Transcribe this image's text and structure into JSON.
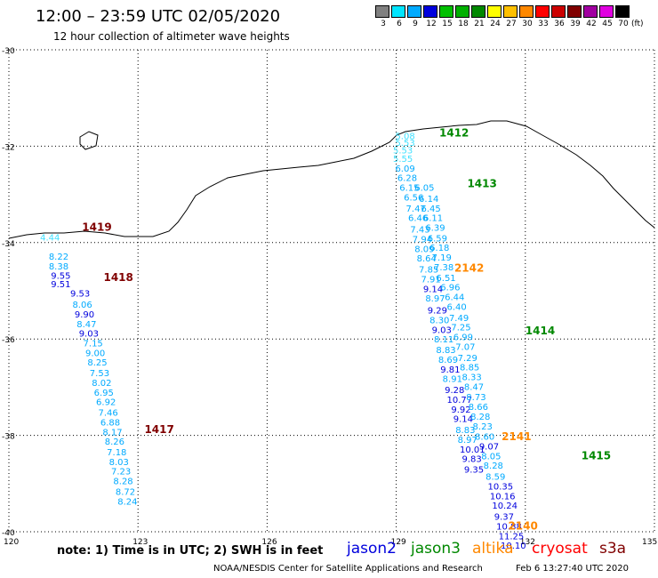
{
  "header": {
    "title": "12:00 – 23:59 UTC 02/05/2020",
    "subtitle": "12 hour collection of altimeter wave heights"
  },
  "color_scale": {
    "unit": "(ft)",
    "bins": [
      {
        "label": "3",
        "color": "#808080"
      },
      {
        "label": "6",
        "color": "#00e5ff"
      },
      {
        "label": "9",
        "color": "#00aaff"
      },
      {
        "label": "12",
        "color": "#0000dd"
      },
      {
        "label": "15",
        "color": "#00c000"
      },
      {
        "label": "18",
        "color": "#00b000"
      },
      {
        "label": "21",
        "color": "#008800"
      },
      {
        "label": "24",
        "color": "#ffff00"
      },
      {
        "label": "27",
        "color": "#ffc000"
      },
      {
        "label": "30",
        "color": "#ff8800"
      },
      {
        "label": "33",
        "color": "#ff0000"
      },
      {
        "label": "36",
        "color": "#cc0000"
      },
      {
        "label": "39",
        "color": "#800000"
      },
      {
        "label": "42",
        "color": "#a000a0"
      },
      {
        "label": "45",
        "color": "#e000e0"
      },
      {
        "label": "70",
        "color": "#000000"
      }
    ]
  },
  "map": {
    "lon_range": [
      120,
      135
    ],
    "lat_range": [
      -40,
      -30
    ],
    "lon_ticks": [
      "120",
      "123",
      "126",
      "129",
      "132",
      "135"
    ],
    "lat_ticks": [
      "-30",
      "-32",
      "-34",
      "-36",
      "-38",
      "-40"
    ]
  },
  "tracks": [
    {
      "pass": "1419",
      "color": "#800000",
      "points": [
        {
          "lon": 120.85,
          "lat": -33.88,
          "v": "4.44",
          "c": "#40e0ff"
        },
        {
          "lon": 121.05,
          "lat": -34.28,
          "v": "8.22",
          "c": "#00aaff"
        },
        {
          "lon": 121.05,
          "lat": -34.48,
          "v": "8.38",
          "c": "#00aaff"
        },
        {
          "lon": 121.1,
          "lat": -34.68,
          "v": "9.55",
          "c": "#0000dd"
        },
        {
          "lon": 121.1,
          "lat": -34.85,
          "v": "9.51",
          "c": "#0000dd"
        }
      ]
    },
    {
      "pass": "1418",
      "color": "#800000",
      "points": [
        {
          "lon": 121.55,
          "lat": -35.05,
          "v": "9.53",
          "c": "#0000dd"
        },
        {
          "lon": 121.6,
          "lat": -35.28,
          "v": "8.06",
          "c": "#00aaff"
        },
        {
          "lon": 121.65,
          "lat": -35.48,
          "v": "9.90",
          "c": "#0000dd"
        },
        {
          "lon": 121.7,
          "lat": -35.68,
          "v": "8.47",
          "c": "#00aaff"
        },
        {
          "lon": 121.75,
          "lat": -35.88,
          "v": "9.03",
          "c": "#0000dd"
        }
      ]
    },
    {
      "pass": "1417",
      "color": "#800000",
      "points": [
        {
          "lon": 121.85,
          "lat": -36.08,
          "v": "7.15",
          "c": "#00aaff"
        },
        {
          "lon": 121.9,
          "lat": -36.28,
          "v": "9.00",
          "c": "#00aaff"
        },
        {
          "lon": 121.95,
          "lat": -36.48,
          "v": "8.25",
          "c": "#00aaff"
        },
        {
          "lon": 122.0,
          "lat": -36.7,
          "v": "7.53",
          "c": "#00aaff"
        },
        {
          "lon": 122.05,
          "lat": -36.9,
          "v": "8.02",
          "c": "#00aaff"
        },
        {
          "lon": 122.1,
          "lat": -37.1,
          "v": "6.95",
          "c": "#00aaff"
        },
        {
          "lon": 122.15,
          "lat": -37.3,
          "v": "6.92",
          "c": "#00aaff"
        },
        {
          "lon": 122.2,
          "lat": -37.52,
          "v": "7.46",
          "c": "#00aaff"
        },
        {
          "lon": 122.25,
          "lat": -37.72,
          "v": "6.88",
          "c": "#00aaff"
        },
        {
          "lon": 122.3,
          "lat": -37.92,
          "v": "8.17",
          "c": "#00aaff"
        },
        {
          "lon": 122.35,
          "lat": -38.12,
          "v": "8.26",
          "c": "#00aaff"
        },
        {
          "lon": 122.4,
          "lat": -38.34,
          "v": "7.18",
          "c": "#00aaff"
        },
        {
          "lon": 122.45,
          "lat": -38.54,
          "v": "8.03",
          "c": "#00aaff"
        },
        {
          "lon": 122.5,
          "lat": -38.74,
          "v": "7.23",
          "c": "#00aaff"
        },
        {
          "lon": 122.55,
          "lat": -38.94,
          "v": "8.28",
          "c": "#00aaff"
        },
        {
          "lon": 122.6,
          "lat": -39.16,
          "v": "8.72",
          "c": "#00aaff"
        },
        {
          "lon": 122.65,
          "lat": -39.36,
          "v": "8.24",
          "c": "#00aaff"
        }
      ]
    },
    {
      "pass": "1412",
      "color": "#008800",
      "points": [
        {
          "lon": 129.1,
          "lat": -31.78,
          "v": "5.08",
          "c": "#40e0ff"
        },
        {
          "lon": 129.1,
          "lat": -31.92,
          "v": "5.53",
          "c": "#40e0ff"
        },
        {
          "lon": 129.05,
          "lat": -32.08,
          "v": "5.53",
          "c": "#40e0ff"
        },
        {
          "lon": 129.05,
          "lat": -32.25,
          "v": "5.55",
          "c": "#40e0ff"
        },
        {
          "lon": 129.1,
          "lat": -32.45,
          "v": "6.09",
          "c": "#00aaff"
        }
      ]
    },
    {
      "pass": "1413",
      "color": "#008800",
      "points": [
        {
          "lon": 129.15,
          "lat": -32.65,
          "v": "6.28",
          "c": "#00aaff"
        },
        {
          "lon": 129.2,
          "lat": -32.85,
          "v": "6.15",
          "c": "#00aaff"
        },
        {
          "lon": 129.3,
          "lat": -33.05,
          "v": "6.56",
          "c": "#00aaff"
        },
        {
          "lon": 129.35,
          "lat": -33.28,
          "v": "7.47",
          "c": "#00aaff"
        },
        {
          "lon": 129.4,
          "lat": -33.48,
          "v": "6.46",
          "c": "#00aaff"
        },
        {
          "lon": 129.45,
          "lat": -33.72,
          "v": "7.43",
          "c": "#00aaff"
        },
        {
          "lon": 129.5,
          "lat": -33.92,
          "v": "7.94",
          "c": "#00aaff"
        },
        {
          "lon": 129.55,
          "lat": -34.12,
          "v": "8.09",
          "c": "#00aaff"
        },
        {
          "lon": 129.6,
          "lat": -34.32,
          "v": "8.64",
          "c": "#00aaff"
        },
        {
          "lon": 129.65,
          "lat": -34.55,
          "v": "7.85",
          "c": "#00aaff"
        },
        {
          "lon": 129.7,
          "lat": -34.75,
          "v": "7.91",
          "c": "#00aaff"
        },
        {
          "lon": 129.75,
          "lat": -34.95,
          "v": "9.14",
          "c": "#0000dd"
        },
        {
          "lon": 129.8,
          "lat": -35.15,
          "v": "8.97",
          "c": "#00aaff"
        },
        {
          "lon": 129.85,
          "lat": -35.4,
          "v": "9.29",
          "c": "#0000dd"
        },
        {
          "lon": 129.9,
          "lat": -35.6,
          "v": "8.30",
          "c": "#00aaff"
        },
        {
          "lon": 129.95,
          "lat": -35.8,
          "v": "9.03",
          "c": "#0000dd"
        },
        {
          "lon": 130.0,
          "lat": -36.0,
          "v": "8.11",
          "c": "#00aaff"
        },
        {
          "lon": 130.05,
          "lat": -36.22,
          "v": "8.83",
          "c": "#00aaff"
        },
        {
          "lon": 130.1,
          "lat": -36.42,
          "v": "8.69",
          "c": "#00aaff"
        },
        {
          "lon": 130.15,
          "lat": -36.62,
          "v": "9.81",
          "c": "#0000dd"
        },
        {
          "lon": 130.2,
          "lat": -36.82,
          "v": "8.91",
          "c": "#00aaff"
        },
        {
          "lon": 130.25,
          "lat": -37.05,
          "v": "9.28",
          "c": "#0000dd"
        },
        {
          "lon": 130.3,
          "lat": -37.25,
          "v": "10.77",
          "c": "#0000dd"
        }
      ]
    },
    {
      "pass": "2141",
      "color": "#ff8800",
      "points": [
        {
          "lon": 130.4,
          "lat": -37.45,
          "v": "9.92",
          "c": "#0000dd"
        },
        {
          "lon": 130.45,
          "lat": -37.65,
          "v": "9.14",
          "c": "#0000dd"
        },
        {
          "lon": 130.5,
          "lat": -37.88,
          "v": "8.83",
          "c": "#00aaff"
        },
        {
          "lon": 130.55,
          "lat": -38.08,
          "v": "8.97",
          "c": "#00aaff"
        },
        {
          "lon": 130.6,
          "lat": -38.28,
          "v": "10.01",
          "c": "#0000dd"
        },
        {
          "lon": 130.65,
          "lat": -38.48,
          "v": "9.83",
          "c": "#0000dd"
        },
        {
          "lon": 130.7,
          "lat": -38.7,
          "v": "9.35",
          "c": "#0000dd"
        }
      ]
    },
    {
      "pass": "2142",
      "color": "#ff8800",
      "points": [
        {
          "lon": 129.55,
          "lat": -32.85,
          "v": "6.05",
          "c": "#00aaff"
        },
        {
          "lon": 129.65,
          "lat": -33.08,
          "v": "6.14",
          "c": "#00aaff"
        },
        {
          "lon": 129.7,
          "lat": -33.28,
          "v": "6.45",
          "c": "#00aaff"
        },
        {
          "lon": 129.75,
          "lat": -33.48,
          "v": "6.11",
          "c": "#00aaff"
        },
        {
          "lon": 129.8,
          "lat": -33.68,
          "v": "6.39",
          "c": "#00aaff"
        },
        {
          "lon": 129.85,
          "lat": -33.9,
          "v": "6.59",
          "c": "#00aaff"
        },
        {
          "lon": 129.9,
          "lat": -34.1,
          "v": "6.18",
          "c": "#00aaff"
        },
        {
          "lon": 129.95,
          "lat": -34.3,
          "v": "7.19",
          "c": "#00aaff"
        },
        {
          "lon": 130.0,
          "lat": -34.5,
          "v": "7.38",
          "c": "#00aaff"
        },
        {
          "lon": 130.05,
          "lat": -34.72,
          "v": "6.51",
          "c": "#00aaff"
        }
      ]
    },
    {
      "pass": "1414",
      "color": "#008800",
      "points": [
        {
          "lon": 130.15,
          "lat": -34.92,
          "v": "6.96",
          "c": "#00aaff"
        },
        {
          "lon": 130.25,
          "lat": -35.12,
          "v": "6.44",
          "c": "#00aaff"
        },
        {
          "lon": 130.3,
          "lat": -35.32,
          "v": "6.40",
          "c": "#00aaff"
        },
        {
          "lon": 130.35,
          "lat": -35.55,
          "v": "7.49",
          "c": "#00aaff"
        },
        {
          "lon": 130.4,
          "lat": -35.75,
          "v": "7.25",
          "c": "#00aaff"
        },
        {
          "lon": 130.45,
          "lat": -35.95,
          "v": "6.99",
          "c": "#00aaff"
        },
        {
          "lon": 130.5,
          "lat": -36.15,
          "v": "7.07",
          "c": "#00aaff"
        },
        {
          "lon": 130.55,
          "lat": -36.38,
          "v": "7.29",
          "c": "#00aaff"
        },
        {
          "lon": 130.6,
          "lat": -36.58,
          "v": "8.85",
          "c": "#00aaff"
        },
        {
          "lon": 130.65,
          "lat": -36.78,
          "v": "8.33",
          "c": "#00aaff"
        },
        {
          "lon": 130.7,
          "lat": -36.98,
          "v": "8.47",
          "c": "#00aaff"
        },
        {
          "lon": 130.75,
          "lat": -37.2,
          "v": "8.73",
          "c": "#00aaff"
        },
        {
          "lon": 130.8,
          "lat": -37.4,
          "v": "8.66",
          "c": "#00aaff"
        },
        {
          "lon": 130.85,
          "lat": -37.6,
          "v": "8.28",
          "c": "#00aaff"
        },
        {
          "lon": 130.9,
          "lat": -37.8,
          "v": "8.23",
          "c": "#00aaff"
        },
        {
          "lon": 130.95,
          "lat": -38.02,
          "v": "8.60",
          "c": "#00aaff"
        }
      ]
    },
    {
      "pass": "1415",
      "color": "#008800",
      "points": [
        {
          "lon": 131.05,
          "lat": -38.22,
          "v": "9.07",
          "c": "#0000dd"
        },
        {
          "lon": 131.1,
          "lat": -38.42,
          "v": "8.05",
          "c": "#00aaff"
        },
        {
          "lon": 131.15,
          "lat": -38.62,
          "v": "8.28",
          "c": "#00aaff"
        },
        {
          "lon": 131.2,
          "lat": -38.85,
          "v": "8.59",
          "c": "#00aaff"
        },
        {
          "lon": 131.25,
          "lat": -39.05,
          "v": "10.35",
          "c": "#0000dd"
        },
        {
          "lon": 131.3,
          "lat": -39.25,
          "v": "10.16",
          "c": "#0000dd"
        },
        {
          "lon": 131.35,
          "lat": -39.45,
          "v": "10.24",
          "c": "#0000dd"
        },
        {
          "lon": 131.4,
          "lat": -39.68,
          "v": "9.37",
          "c": "#0000dd"
        },
        {
          "lon": 131.45,
          "lat": -39.88,
          "v": "10.88",
          "c": "#0000dd"
        },
        {
          "lon": 131.5,
          "lat": -40.08,
          "v": "11.25",
          "c": "#0000dd"
        },
        {
          "lon": 131.55,
          "lat": -40.28,
          "v": "10.10",
          "c": "#0000dd"
        }
      ]
    }
  ],
  "pass_labels": [
    {
      "text": "1419",
      "lon": 121.7,
      "lat": -33.75,
      "color": "#800000"
    },
    {
      "text": "1418",
      "lon": 122.2,
      "lat": -34.8,
      "color": "#800000"
    },
    {
      "text": "1417",
      "lon": 123.15,
      "lat": -37.95,
      "color": "#800000"
    },
    {
      "text": "1412",
      "lon": 130.0,
      "lat": -31.8,
      "color": "#008800"
    },
    {
      "text": "1413",
      "lon": 130.65,
      "lat": -32.85,
      "color": "#008800"
    },
    {
      "text": "2142",
      "lon": 130.35,
      "lat": -34.6,
      "color": "#ff8800"
    },
    {
      "text": "1414",
      "lon": 132.0,
      "lat": -35.9,
      "color": "#008800"
    },
    {
      "text": "2141",
      "lon": 131.45,
      "lat": -38.1,
      "color": "#ff8800"
    },
    {
      "text": "1415",
      "lon": 133.3,
      "lat": -38.5,
      "color": "#008800"
    },
    {
      "text": "2140",
      "lon": 131.6,
      "lat": -39.95,
      "color": "#ff8800"
    }
  ],
  "footer": {
    "note": "note:  1) Time is in UTC; 2) SWH is in feet",
    "satellites": [
      {
        "name": "jason2",
        "color": "#0000dd"
      },
      {
        "name": "jason3",
        "color": "#008800"
      },
      {
        "name": "altika",
        "color": "#ff8800"
      },
      {
        "name": "cryosat",
        "color": "#ff0000"
      },
      {
        "name": "s3a",
        "color": "#800000"
      }
    ],
    "credit": "NOAA/NESDIS Center for Satellite Applications and Research",
    "timestamp": "Feb  6 13:27:40 UTC 2020"
  }
}
